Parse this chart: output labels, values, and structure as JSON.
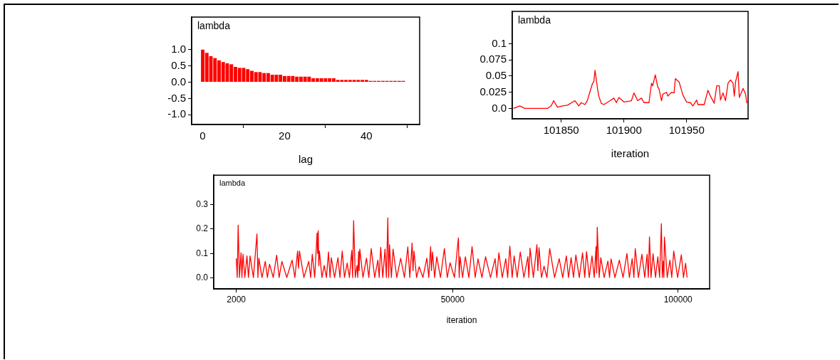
{
  "chart_data": [
    {
      "type": "bar",
      "title": "lambda",
      "xlabel": "lag",
      "color": "#ff0000",
      "x": [
        0,
        1,
        2,
        3,
        4,
        5,
        6,
        7,
        8,
        9,
        10,
        11,
        12,
        13,
        14,
        15,
        16,
        17,
        18,
        19,
        20,
        21,
        22,
        23,
        24,
        25,
        26,
        27,
        28,
        29,
        30,
        31,
        32,
        33,
        34,
        35,
        36,
        37,
        38,
        39,
        40,
        41,
        42,
        43,
        44,
        45,
        46,
        47,
        48,
        49
      ],
      "values": [
        1.0,
        0.9,
        0.8,
        0.74,
        0.67,
        0.62,
        0.58,
        0.55,
        0.47,
        0.44,
        0.44,
        0.4,
        0.35,
        0.31,
        0.31,
        0.28,
        0.28,
        0.23,
        0.23,
        0.23,
        0.19,
        0.19,
        0.19,
        0.17,
        0.17,
        0.17,
        0.17,
        0.12,
        0.12,
        0.12,
        0.12,
        0.12,
        0.12,
        0.07,
        0.07,
        0.07,
        0.07,
        0.07,
        0.07,
        0.07,
        0.07,
        0.04,
        0.04,
        0.04,
        0.04,
        0.04,
        0.04,
        0.04,
        0.04,
        0.04
      ],
      "xlim": [
        -2.7,
        53
      ],
      "xticks": [
        0,
        20,
        40
      ],
      "ylim": [
        -1.3,
        2.0
      ],
      "yticks": [
        {
          "value": -1.0,
          "label": "-1.0"
        },
        {
          "value": -0.5,
          "label": "-0.5"
        },
        {
          "value": 0,
          "label": "0.0"
        },
        {
          "value": 0.5,
          "label": "0.5"
        },
        {
          "value": 1.0,
          "label": "1.0"
        }
      ]
    },
    {
      "type": "line",
      "title": "lambda",
      "xlabel": "iteration",
      "color": "#ff0000",
      "x": [
        101812,
        101817,
        101821,
        101839,
        101842,
        101844,
        101847,
        101851,
        101855,
        101861,
        101864,
        101866,
        101869,
        101871,
        101873,
        101875,
        101876,
        101877,
        101879,
        101880,
        101882,
        101884,
        101889,
        101892,
        101894,
        101896,
        101900,
        101906,
        101908,
        101911,
        101914,
        101916,
        101920,
        101922,
        101923,
        101925,
        101927,
        101928,
        101930,
        101931,
        101934,
        101935,
        101938,
        101940,
        101941,
        101944,
        101947,
        101950,
        101953,
        101955,
        101958,
        101959,
        101964,
        101967,
        101969,
        101972,
        101974,
        101976,
        101977,
        101979,
        101981,
        101983,
        101985,
        101987,
        101988,
        101989,
        101991,
        101992,
        101995,
        101997,
        101998
      ],
      "values": [
        0,
        0.004,
        0,
        0,
        0.004,
        0.012,
        0.002,
        0.004,
        0.005,
        0.012,
        0.004,
        0.009,
        0.006,
        0.013,
        0.026,
        0.039,
        0.041,
        0.059,
        0.03,
        0.019,
        0.008,
        0.006,
        0.012,
        0.016,
        0.009,
        0.017,
        0.01,
        0.012,
        0.024,
        0.012,
        0.016,
        0.009,
        0.009,
        0.039,
        0.035,
        0.052,
        0.033,
        0.03,
        0.012,
        0.022,
        0.025,
        0.019,
        0.025,
        0.024,
        0.046,
        0.041,
        0.021,
        0.01,
        0.009,
        0.004,
        0.013,
        0.006,
        0.006,
        0.028,
        0.019,
        0.008,
        0.035,
        0.035,
        0.013,
        0.024,
        0.012,
        0.039,
        0.044,
        0.039,
        0.019,
        0.041,
        0.057,
        0.017,
        0.031,
        0.022,
        0.008
      ],
      "xlim": [
        101811,
        101999
      ],
      "xticks": [
        101850,
        101900,
        101950
      ],
      "ylim": [
        -0.016,
        0.15
      ],
      "yticks": [
        {
          "value": 0,
          "label": "0.0"
        },
        0.025,
        0.05,
        0.075,
        0.1
      ]
    },
    {
      "type": "line",
      "title": "lambda",
      "xlabel": "iteration",
      "color": "#ff0000",
      "x": [
        2000,
        2210,
        2420,
        2700,
        3050,
        3250,
        3480,
        3900,
        4370,
        4700,
        5060,
        5800,
        6590,
        6800,
        7010,
        7700,
        8430,
        8900,
        9380,
        10200,
        10960,
        11500,
        12120,
        13200,
        14380,
        15000,
        15600,
        15800,
        16020,
        17000,
        18070,
        18500,
        18860,
        19400,
        19920,
        20050,
        20180,
        20300,
        20440,
        21000,
        21500,
        22000,
        22450,
        22800,
        23080,
        23800,
        24560,
        25000,
        25500,
        26000,
        26610,
        27100,
        27610,
        27800,
        28030,
        28400,
        28770,
        28950,
        29140,
        29250,
        29400,
        30100,
        30880,
        31400,
        31930,
        32700,
        33410,
        33700,
        34040,
        34500,
        34990,
        35300,
        35620,
        35800,
        35990,
        36400,
        36780,
        37600,
        38470,
        39300,
        40050,
        40500,
        41000,
        41200,
        41420,
        42000,
        42580,
        43400,
        44270,
        44700,
        45110,
        45300,
        45530,
        46000,
        46480,
        47300,
        48160,
        48800,
        49430,
        50400,
        51270,
        51450,
        51640,
        52200,
        52820,
        53600,
        54300,
        55000,
        55620,
        56500,
        57300,
        58400,
        59410,
        59800,
        60250,
        61000,
        61780,
        62200,
        62680,
        63200,
        63630,
        64300,
        65000,
        65800,
        66680,
        66900,
        67160,
        67900,
        68690,
        68900,
        69160,
        69700,
        70270,
        70900,
        71530,
        72600,
        73640,
        74400,
        75220,
        75700,
        76280,
        76800,
        77330,
        78100,
        78810,
        79300,
        79700,
        80300,
        80910,
        81400,
        81810,
        81950,
        82070,
        82500,
        82860,
        83600,
        84440,
        84800,
        85130,
        86000,
        86970,
        87800,
        88660,
        89200,
        89820,
        90200,
        90500,
        91200,
        91980,
        92600,
        93140,
        93400,
        93660,
        94000,
        94450,
        95000,
        95510,
        95900,
        96300,
        96500,
        96720,
        96850,
        96980,
        97600,
        98200,
        98600,
        99040,
        99900,
        100730,
        101200,
        101680,
        102000
      ],
      "values": [
        0.08,
        0.002,
        0.216,
        0.002,
        0.103,
        0.002,
        0.097,
        0.002,
        0.09,
        0.002,
        0.09,
        0.002,
        0.18,
        0.002,
        0.081,
        0.002,
        0.068,
        0.002,
        0.056,
        0.002,
        0.093,
        0.002,
        0.068,
        0.002,
        0.073,
        0.002,
        0.11,
        0.04,
        0.11,
        0.002,
        0.068,
        0.002,
        0.097,
        0.002,
        0.183,
        0.1,
        0.193,
        0.05,
        0.11,
        0.002,
        0.051,
        0.002,
        0.106,
        0.002,
        0.083,
        0.002,
        0.083,
        0.002,
        0.11,
        0.002,
        0.061,
        0.002,
        0.113,
        0.002,
        0.234,
        0.002,
        0.051,
        0.002,
        0.108,
        0.03,
        0.118,
        0.002,
        0.081,
        0.002,
        0.12,
        0.002,
        0.073,
        0.002,
        0.125,
        0.002,
        0.118,
        0.002,
        0.246,
        0.002,
        0.136,
        0.002,
        0.118,
        0.002,
        0.08,
        0.002,
        0.127,
        0.002,
        0.143,
        0.03,
        0.11,
        0.002,
        0.046,
        0.002,
        0.081,
        0.002,
        0.128,
        0.03,
        0.106,
        0.002,
        0.087,
        0.002,
        0.12,
        0.002,
        0.062,
        0.002,
        0.164,
        0.002,
        0.087,
        0.002,
        0.087,
        0.002,
        0.128,
        0.002,
        0.078,
        0.002,
        0.087,
        0.002,
        0.079,
        0.002,
        0.103,
        0.002,
        0.079,
        0.002,
        0.13,
        0.002,
        0.09,
        0.002,
        0.106,
        0.002,
        0.087,
        0.002,
        0.122,
        0.002,
        0.136,
        0.03,
        0.124,
        0.002,
        0.048,
        0.002,
        0.12,
        0.002,
        0.079,
        0.002,
        0.09,
        0.002,
        0.083,
        0.002,
        0.094,
        0.002,
        0.103,
        0.002,
        0.108,
        0.002,
        0.09,
        0.002,
        0.128,
        0.02,
        0.207,
        0.002,
        0.083,
        0.002,
        0.069,
        0.002,
        0.078,
        0.002,
        0.073,
        0.002,
        0.1,
        0.002,
        0.079,
        0.002,
        0.12,
        0.002,
        0.097,
        0.002,
        0.097,
        0.002,
        0.168,
        0.002,
        0.099,
        0.002,
        0.087,
        0.002,
        0.222,
        0.002,
        0.069,
        0.002,
        0.167,
        0.002,
        0.073,
        0.002,
        0.11,
        0.002,
        0.095,
        0.002,
        0.06,
        0.002
      ],
      "xlim": [
        -3000,
        107000
      ],
      "xticks": [
        2000,
        50000,
        100000
      ],
      "ylim": [
        -0.045,
        0.42
      ],
      "yticks": [
        {
          "value": 0,
          "label": "0.0"
        },
        0.1,
        0.2,
        0.3
      ]
    }
  ]
}
